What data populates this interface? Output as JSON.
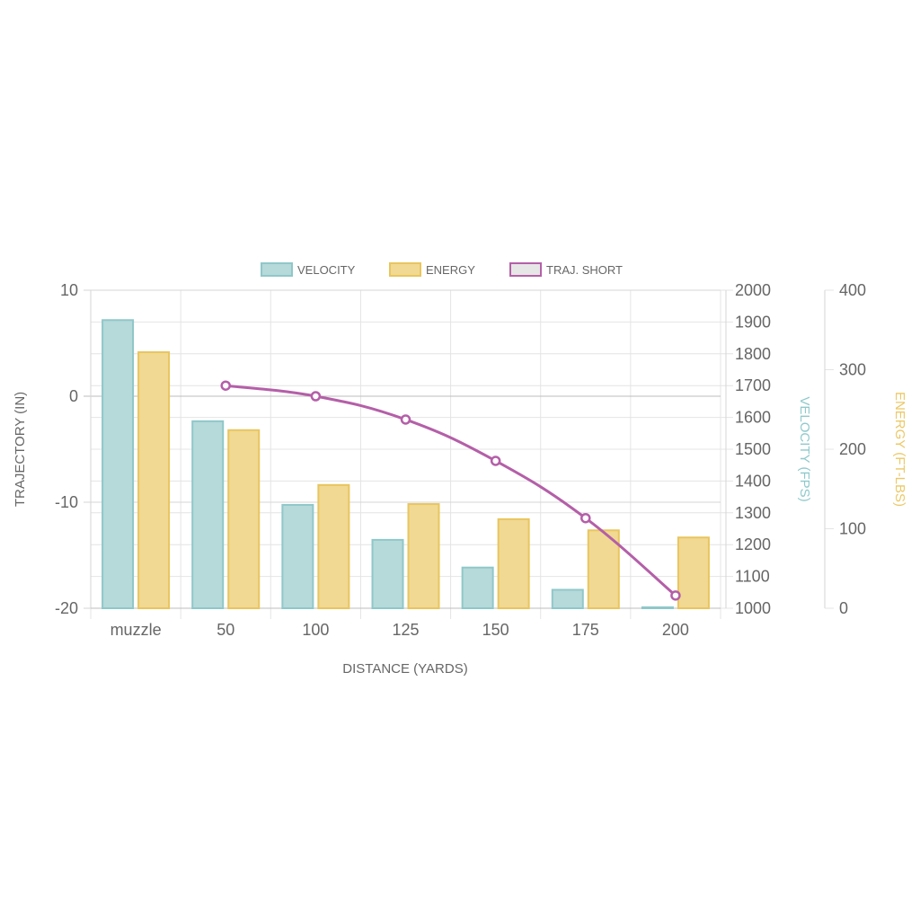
{
  "chart_data": {
    "type": "bar",
    "categories": [
      "muzzle",
      "50",
      "100",
      "125",
      "150",
      "175",
      "200"
    ],
    "series": [
      {
        "name": "VELOCITY",
        "type": "bar",
        "axis": "velocity",
        "values": [
          1906,
          1588,
          1325,
          1215,
          1128,
          1058,
          1003
        ]
      },
      {
        "name": "ENERGY",
        "type": "bar",
        "axis": "energy",
        "values": [
          322,
          224,
          155,
          131,
          112,
          98,
          89
        ]
      },
      {
        "name": "TRAJ. SHORT",
        "type": "line",
        "axis": "trajectory",
        "values": [
          null,
          1,
          0,
          -2.2,
          -6.1,
          -11.5,
          -18.8
        ]
      }
    ],
    "xlabel": "DISTANCE (YARDS)",
    "axes": {
      "trajectory": {
        "label": "TRAJECTORY (IN)",
        "range": [
          -20,
          10
        ],
        "ticks": [
          "10",
          "0",
          "-10",
          "-20"
        ],
        "tick_values": [
          10,
          0,
          -10,
          -20
        ]
      },
      "velocity": {
        "label": "VELOCITY (FPS)",
        "range": [
          1000,
          2000
        ],
        "ticks": [
          "2000",
          "1900",
          "1800",
          "1700",
          "1600",
          "1500",
          "1400",
          "1300",
          "1200",
          "1100",
          "1000"
        ],
        "tick_values": [
          2000,
          1900,
          1800,
          1700,
          1600,
          1500,
          1400,
          1300,
          1200,
          1100,
          1000
        ]
      },
      "energy": {
        "label": "ENERGY (FT-LBS)",
        "range": [
          0,
          400
        ],
        "ticks": [
          "400",
          "300",
          "200",
          "100",
          "0"
        ],
        "tick_values": [
          400,
          300,
          200,
          100,
          0
        ]
      }
    },
    "grid": true,
    "legend_position": "top-center",
    "colors": {
      "velocity_fill": "#b6d9da",
      "velocity_stroke": "#8fc7c9",
      "energy_fill": "#f1d993",
      "energy_stroke": "#e9c55e",
      "traj_stroke": "#b45fa8",
      "traj_legend_fill": "#e6e6e6",
      "velocity_title": "#8fc9cc",
      "energy_title": "#ecc866",
      "grid": "#e4e4e4",
      "zero_line": "#bdbdbd",
      "tick_text": "#666666"
    }
  }
}
